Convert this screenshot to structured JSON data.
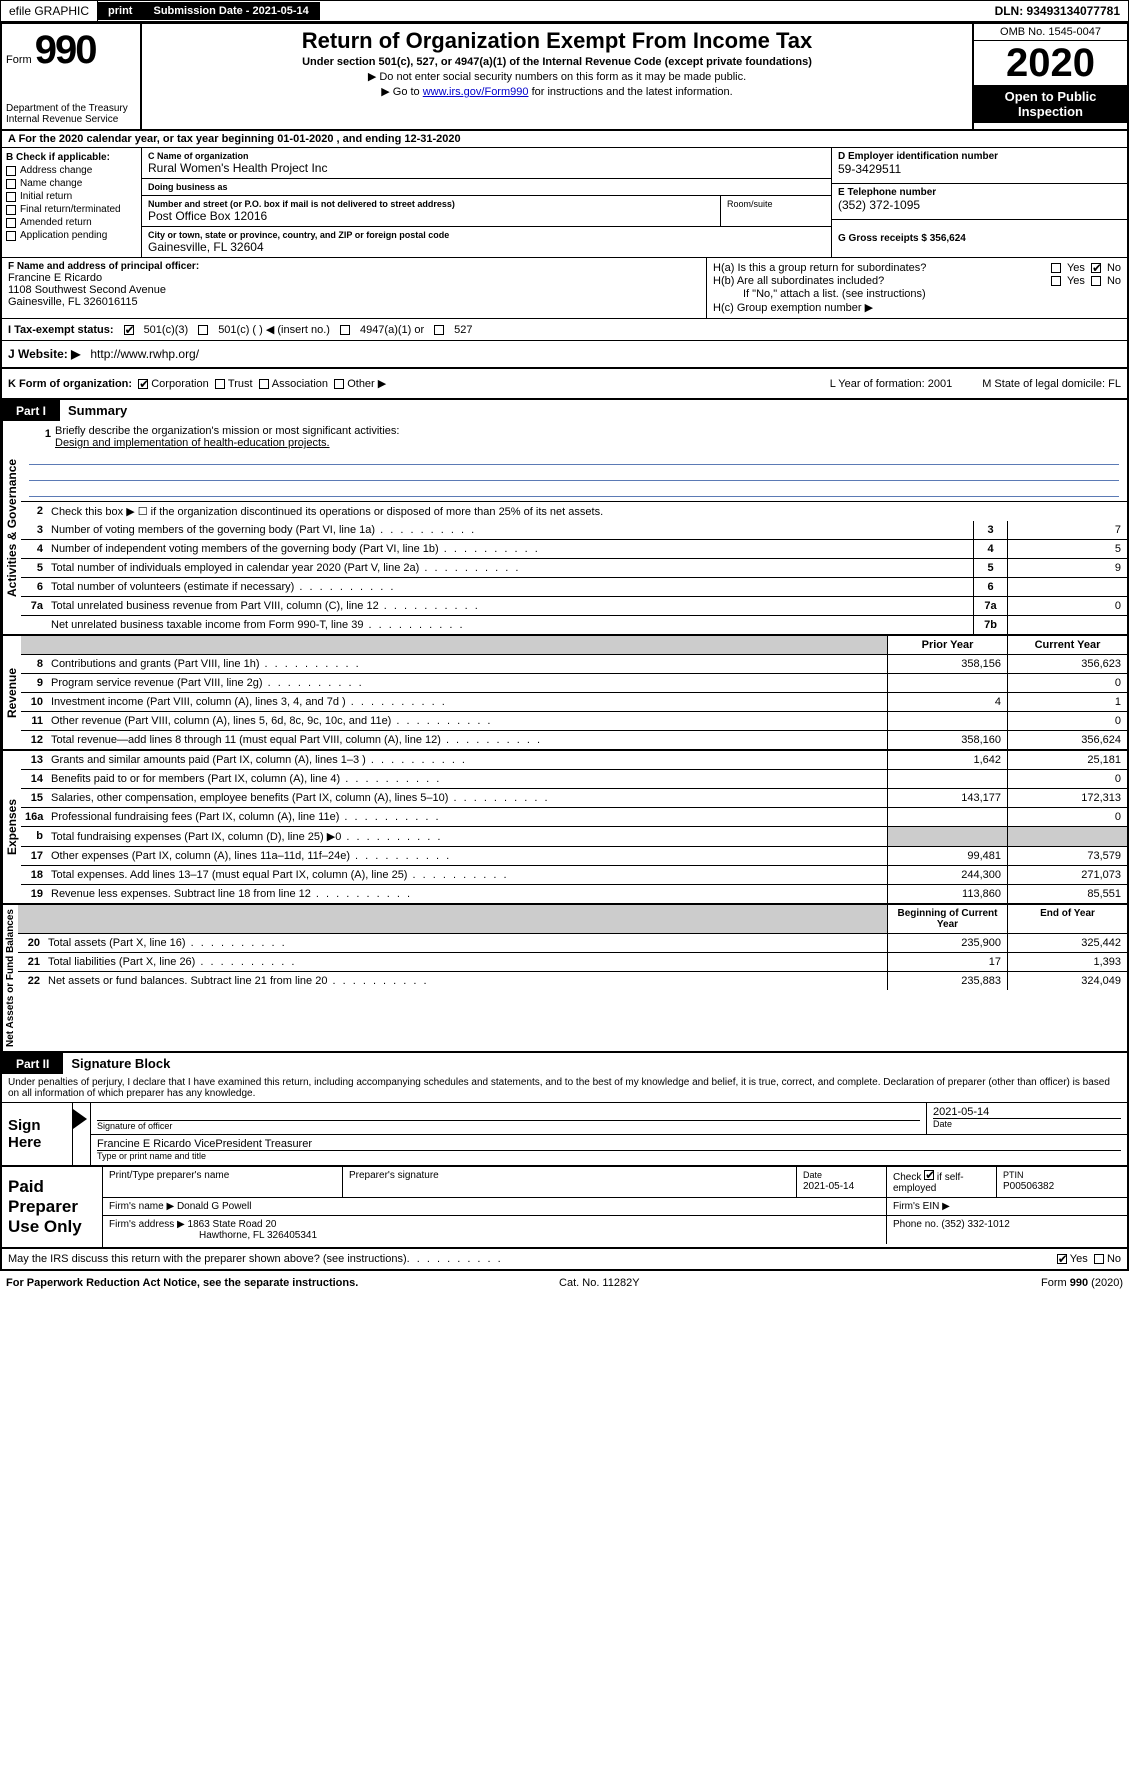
{
  "topbar": {
    "efile": "efile GRAPHIC",
    "print": "print",
    "sub_label": "Submission Date - 2021-05-14",
    "dln": "DLN: 93493134077781"
  },
  "header": {
    "form_word": "Form",
    "form_num": "990",
    "dept": "Department of the Treasury\nInternal Revenue Service",
    "title": "Return of Organization Exempt From Income Tax",
    "subtitle": "Under section 501(c), 527, or 4947(a)(1) of the Internal Revenue Code (except private foundations)",
    "arrow1": "▶ Do not enter social security numbers on this form as it may be made public.",
    "arrow2_pre": "▶ Go to ",
    "arrow2_link": "www.irs.gov/Form990",
    "arrow2_post": " for instructions and the latest information.",
    "omb": "OMB No. 1545-0047",
    "year": "2020",
    "open": "Open to Public Inspection"
  },
  "row_a": "A For the 2020 calendar year, or tax year beginning 01-01-2020    , and ending 12-31-2020",
  "col_b": {
    "label": "B Check if applicable:",
    "items": [
      "Address change",
      "Name change",
      "Initial return",
      "Final return/terminated",
      "Amended return",
      "Application pending"
    ]
  },
  "col_c": {
    "name_label": "C Name of organization",
    "name": "Rural Women's Health Project Inc",
    "dba_label": "Doing business as",
    "dba": "",
    "addr_label": "Number and street (or P.O. box if mail is not delivered to street address)",
    "addr": "Post Office Box 12016",
    "room_label": "Room/suite",
    "city_label": "City or town, state or province, country, and ZIP or foreign postal code",
    "city": "Gainesville, FL  32604"
  },
  "col_d": {
    "label": "D Employer identification number",
    "val": "59-3429511"
  },
  "col_e": {
    "label": "E Telephone number",
    "val": "(352) 372-1095"
  },
  "col_g": {
    "label": "G Gross receipts $ 356,624"
  },
  "col_f": {
    "label": "F Name and address of principal officer:",
    "name": "Francine E Ricardo",
    "addr1": "1108 Southwest Second Avenue",
    "addr2": "Gainesville, FL  326016115"
  },
  "col_h": {
    "ha": "H(a)  Is this a group return for subordinates?",
    "hb": "H(b)  Are all subordinates included?",
    "hb_note": "If \"No,\" attach a list. (see instructions)",
    "hc": "H(c)  Group exemption number ▶",
    "yes": "Yes",
    "no": "No"
  },
  "tax_status": {
    "label": "I  Tax-exempt status:",
    "c3": "501(c)(3)",
    "c": "501(c) (  ) ◀ (insert no.)",
    "a1": "4947(a)(1) or",
    "s527": "527"
  },
  "website": {
    "label": "J  Website: ▶",
    "val": "http://www.rwhp.org/"
  },
  "row_k": {
    "label": "K Form of organization:",
    "corp": "Corporation",
    "trust": "Trust",
    "assoc": "Association",
    "other": "Other ▶",
    "l": "L Year of formation: 2001",
    "m": "M State of legal domicile: FL"
  },
  "part1": {
    "tab": "Part I",
    "title": "Summary"
  },
  "summary": {
    "q1": "Briefly describe the organization's mission or most significant activities:",
    "mission": "Design and implementation of health-education projects.",
    "q2": "Check this box ▶ ☐  if the organization discontinued its operations or disposed of more than 25% of its net assets.",
    "lines_gov": [
      {
        "n": "3",
        "t": "Number of voting members of the governing body (Part VI, line 1a)",
        "box": "3",
        "v": "7"
      },
      {
        "n": "4",
        "t": "Number of independent voting members of the governing body (Part VI, line 1b)",
        "box": "4",
        "v": "5"
      },
      {
        "n": "5",
        "t": "Total number of individuals employed in calendar year 2020 (Part V, line 2a)",
        "box": "5",
        "v": "9"
      },
      {
        "n": "6",
        "t": "Total number of volunteers (estimate if necessary)",
        "box": "6",
        "v": ""
      },
      {
        "n": "7a",
        "t": "Total unrelated business revenue from Part VIII, column (C), line 12",
        "box": "7a",
        "v": "0"
      },
      {
        "n": "",
        "t": "Net unrelated business taxable income from Form 990-T, line 39",
        "box": "7b",
        "v": ""
      }
    ],
    "prior": "Prior Year",
    "current": "Current Year",
    "rev": [
      {
        "n": "8",
        "t": "Contributions and grants (Part VIII, line 1h)",
        "p": "358,156",
        "c": "356,623"
      },
      {
        "n": "9",
        "t": "Program service revenue (Part VIII, line 2g)",
        "p": "",
        "c": "0"
      },
      {
        "n": "10",
        "t": "Investment income (Part VIII, column (A), lines 3, 4, and 7d )",
        "p": "4",
        "c": "1"
      },
      {
        "n": "11",
        "t": "Other revenue (Part VIII, column (A), lines 5, 6d, 8c, 9c, 10c, and 11e)",
        "p": "",
        "c": "0"
      },
      {
        "n": "12",
        "t": "Total revenue—add lines 8 through 11 (must equal Part VIII, column (A), line 12)",
        "p": "358,160",
        "c": "356,624"
      }
    ],
    "exp": [
      {
        "n": "13",
        "t": "Grants and similar amounts paid (Part IX, column (A), lines 1–3 )",
        "p": "1,642",
        "c": "25,181"
      },
      {
        "n": "14",
        "t": "Benefits paid to or for members (Part IX, column (A), line 4)",
        "p": "",
        "c": "0"
      },
      {
        "n": "15",
        "t": "Salaries, other compensation, employee benefits (Part IX, column (A), lines 5–10)",
        "p": "143,177",
        "c": "172,313"
      },
      {
        "n": "16a",
        "t": "Professional fundraising fees (Part IX, column (A), line 11e)",
        "p": "",
        "c": "0"
      },
      {
        "n": "b",
        "t": "Total fundraising expenses (Part IX, column (D), line 25) ▶0",
        "p": "shaded",
        "c": "shaded"
      },
      {
        "n": "17",
        "t": "Other expenses (Part IX, column (A), lines 11a–11d, 11f–24e)",
        "p": "99,481",
        "c": "73,579"
      },
      {
        "n": "18",
        "t": "Total expenses. Add lines 13–17 (must equal Part IX, column (A), line 25)",
        "p": "244,300",
        "c": "271,073"
      },
      {
        "n": "19",
        "t": "Revenue less expenses. Subtract line 18 from line 12",
        "p": "113,860",
        "c": "85,551"
      }
    ],
    "begin": "Beginning of Current Year",
    "end": "End of Year",
    "net": [
      {
        "n": "20",
        "t": "Total assets (Part X, line 16)",
        "p": "235,900",
        "c": "325,442"
      },
      {
        "n": "21",
        "t": "Total liabilities (Part X, line 26)",
        "p": "17",
        "c": "1,393"
      },
      {
        "n": "22",
        "t": "Net assets or fund balances. Subtract line 21 from line 20",
        "p": "235,883",
        "c": "324,049"
      }
    ]
  },
  "vlabels": {
    "gov": "Activities & Governance",
    "rev": "Revenue",
    "exp": "Expenses",
    "net": "Net Assets or Fund Balances"
  },
  "part2": {
    "tab": "Part II",
    "title": "Signature Block"
  },
  "perjury": "Under penalties of perjury, I declare that I have examined this return, including accompanying schedules and statements, and to the best of my knowledge and belief, it is true, correct, and complete. Declaration of preparer (other than officer) is based on all information of which preparer has any knowledge.",
  "sign": {
    "here": "Sign Here",
    "sig_officer": "Signature of officer",
    "date_val": "2021-05-14",
    "date": "Date",
    "name": "Francine E Ricardo  VicePresident Treasurer",
    "name_label": "Type or print name and title"
  },
  "paid": {
    "label": "Paid Preparer Use Only",
    "h1": "Print/Type preparer's name",
    "h2": "Preparer's signature",
    "h3": "Date",
    "h3v": "2021-05-14",
    "h4a": "Check",
    "h4b": "if self-employed",
    "h5": "PTIN",
    "h5v": "P00506382",
    "firm_name_l": "Firm's name    ▶",
    "firm_name": "Donald G Powell",
    "firm_ein": "Firm's EIN ▶",
    "firm_addr_l": "Firm's address ▶",
    "firm_addr": "1863 State Road 20",
    "firm_addr2": "Hawthorne, FL  326405341",
    "phone_l": "Phone no. (352) 332-1012"
  },
  "discuss": {
    "q": "May the IRS discuss this return with the preparer shown above? (see instructions)",
    "yes": "Yes",
    "no": "No"
  },
  "footer": {
    "l": "For Paperwork Reduction Act Notice, see the separate instructions.",
    "m": "Cat. No. 11282Y",
    "r": "Form 990 (2020)"
  }
}
